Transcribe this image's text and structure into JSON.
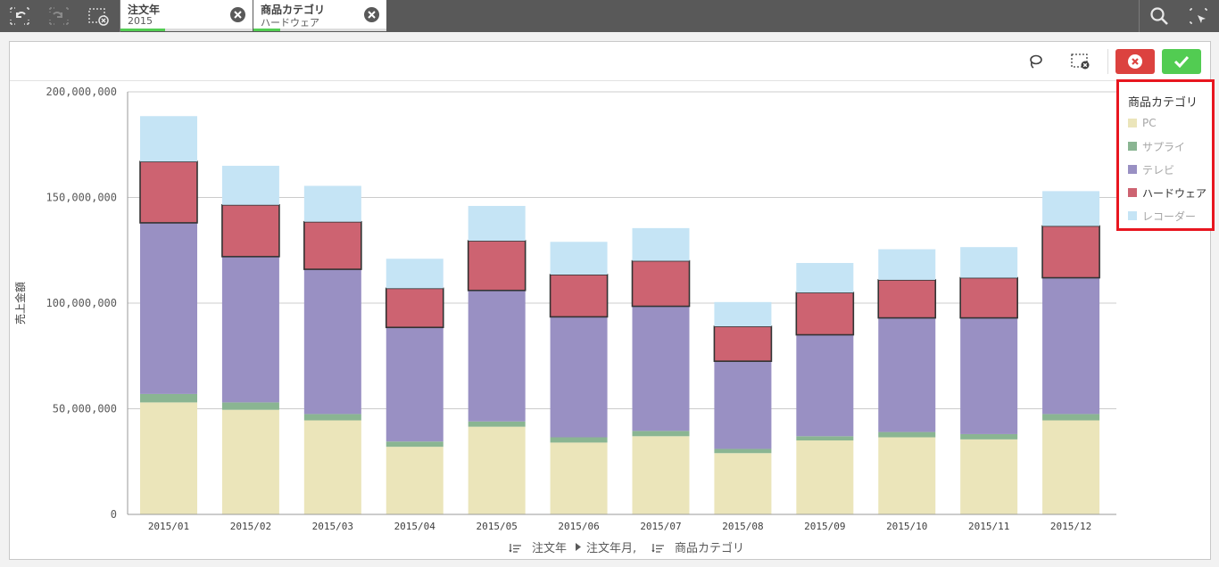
{
  "toolbar": {
    "back_icon": "step-back-icon",
    "forward_icon": "step-forward-icon",
    "clear_all_icon": "clear-selections-icon",
    "search_icon": "search-icon",
    "smart_select_icon": "selection-tool-icon"
  },
  "selections": [
    {
      "field": "注文年",
      "value": "2015",
      "clear_icon": "close-icon"
    },
    {
      "field": "商品カテゴリ",
      "value": "ハードウェア",
      "clear_icon": "close-icon"
    }
  ],
  "panel": {
    "lasso_icon": "lasso-icon",
    "clear_selection_icon": "clear-selection-icon",
    "cancel_icon": "cancel-icon",
    "confirm_icon": "checkmark-icon"
  },
  "colors": {
    "pc": "#ebe5ba",
    "supply": "#8ab592",
    "tv": "#9990c3",
    "hardware": "#cd6371",
    "recorder": "#c5e4f5",
    "legend_highlight": "#e8161f",
    "cancel": "#dc423f",
    "confirm": "#52cc52"
  },
  "chart_data": {
    "type": "bar",
    "stacked": true,
    "categories": [
      "2015/01",
      "2015/02",
      "2015/03",
      "2015/04",
      "2015/05",
      "2015/06",
      "2015/07",
      "2015/08",
      "2015/09",
      "2015/10",
      "2015/11",
      "2015/12"
    ],
    "series": [
      {
        "name": "PC",
        "key": "pc",
        "values": [
          53000000,
          49500000,
          44500000,
          32000000,
          41500000,
          34000000,
          37000000,
          29000000,
          35000000,
          36500000,
          35500000,
          44500000
        ]
      },
      {
        "name": "サプライ",
        "key": "supply",
        "values": [
          4000000,
          3500000,
          3000000,
          2500000,
          2500000,
          2500000,
          2500000,
          2000000,
          2000000,
          2500000,
          2500000,
          3000000
        ]
      },
      {
        "name": "テレビ",
        "key": "tv",
        "values": [
          81000000,
          69000000,
          68500000,
          54000000,
          62000000,
          57000000,
          59000000,
          41500000,
          48000000,
          54000000,
          55000000,
          64500000
        ]
      },
      {
        "name": "ハードウェア",
        "key": "hardware",
        "values": [
          29000000,
          24500000,
          22500000,
          18500000,
          23500000,
          20000000,
          21500000,
          16500000,
          20000000,
          18000000,
          19000000,
          24500000
        ]
      },
      {
        "name": "レコーダー",
        "key": "recorder",
        "values": [
          21500000,
          18500000,
          17000000,
          14000000,
          16500000,
          15500000,
          15500000,
          11500000,
          14000000,
          14500000,
          14500000,
          16500000
        ]
      }
    ],
    "selected_series": "ハードウェア",
    "ylabel": "売上金額",
    "ylim": [
      0,
      200000000
    ],
    "yticks": [
      0,
      50000000,
      100000000,
      150000000,
      200000000
    ],
    "ytick_labels": [
      "0",
      "50,000,000",
      "100,000,000",
      "150,000,000",
      "200,000,000"
    ],
    "grid": true,
    "legend_title": "商品カテゴリ",
    "legend_position": "right",
    "xaxis_caption": {
      "field1": "注文年",
      "field2": "注文年月,",
      "field3": "商品カテゴリ"
    }
  }
}
